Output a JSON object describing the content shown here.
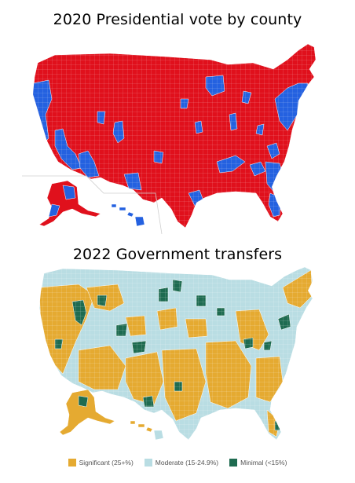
{
  "maps": [
    {
      "title": "2020 Presidential vote by county",
      "categories": [
        {
          "name": "",
          "color": "#e0101c"
        },
        {
          "name": "",
          "color": "#2461e0"
        }
      ],
      "border_color": "#ffffff"
    },
    {
      "title": "2022 Government transfers",
      "categories": [
        {
          "name": "Significant (25+%)",
          "color": "#e5aa31"
        },
        {
          "name": "Moderate (15-24.9%)",
          "color": "#b9dde3"
        },
        {
          "name": "Minimal (<15%)",
          "color": "#1e6b50"
        }
      ],
      "border_color": "#ffffff"
    }
  ]
}
